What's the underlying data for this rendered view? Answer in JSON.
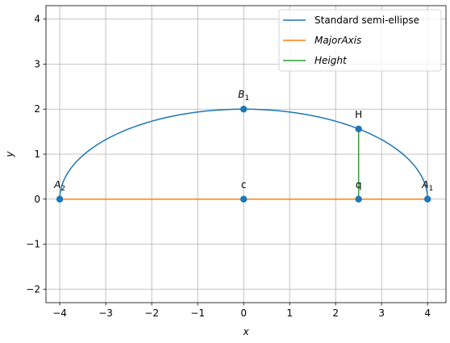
{
  "chart_data": {
    "type": "line",
    "xlabel": "x",
    "ylabel": "y",
    "xlim": [
      -4.3,
      4.4
    ],
    "ylim": [
      -2.3,
      4.3
    ],
    "xticks": [
      -4,
      -3,
      -2,
      -1,
      0,
      1,
      2,
      3,
      4
    ],
    "yticks": [
      -2,
      -1,
      0,
      1,
      2,
      3,
      4
    ],
    "grid": true,
    "legend_position": "top-right",
    "series": [
      {
        "name": "Standard semi-ellipse",
        "kind": "semi-ellipse",
        "a": 4,
        "b": 2,
        "color": "#1f77b4"
      },
      {
        "name": "MajorAxis",
        "italic": true,
        "x": [
          -4,
          4
        ],
        "y": [
          0,
          0
        ],
        "color": "#ff7f0e"
      },
      {
        "name": "Height",
        "italic": true,
        "x": [
          2.5,
          2.5
        ],
        "y": [
          0,
          1.56
        ],
        "color": "#2ca02c"
      }
    ],
    "points": [
      {
        "label": "A",
        "sub": "2",
        "x": -4,
        "y": 0
      },
      {
        "label": "c",
        "sub": "",
        "x": 0,
        "y": 0
      },
      {
        "label": "q",
        "sub": "",
        "x": 2.5,
        "y": 0
      },
      {
        "label": "A",
        "sub": "1",
        "x": 4,
        "y": 0
      },
      {
        "label": "B",
        "sub": "1",
        "x": 0,
        "y": 2
      },
      {
        "label": "H",
        "sub": "",
        "x": 2.5,
        "y": 1.56
      }
    ],
    "point_color": "#1f77b4"
  }
}
